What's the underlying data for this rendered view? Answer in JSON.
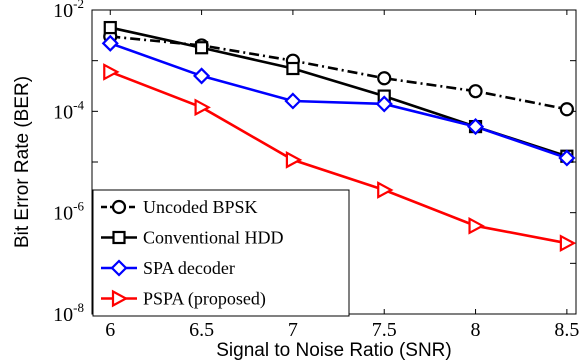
{
  "chart_data": {
    "type": "line",
    "title": "",
    "xlabel": "Signal to Noise Ratio (SNR)",
    "ylabel": "Bit Error Rate (BER)",
    "x": [
      6,
      6.5,
      7,
      7.5,
      8,
      8.5
    ],
    "xlim": [
      5.9,
      8.55
    ],
    "ylim": [
      1e-08,
      0.01
    ],
    "yscale": "log",
    "x_tick_labels": [
      "6",
      "6.5",
      "7",
      "7.5",
      "8",
      "8.5"
    ],
    "y_ticks": [
      {
        "value": 1e-08,
        "base": "10",
        "exp": "-8"
      },
      {
        "value": 1e-06,
        "base": "10",
        "exp": "-6"
      },
      {
        "value": 0.0001,
        "base": "10",
        "exp": "-4"
      },
      {
        "value": 0.01,
        "base": "10",
        "exp": "-2"
      }
    ],
    "grid": false,
    "legend_position": "bottom-left",
    "series": [
      {
        "name": "Uncoded BPSK",
        "color": "#000000",
        "dash": "dash-dot",
        "marker": "circle",
        "values": [
          0.003,
          0.002,
          0.001,
          0.00045,
          0.00025,
          0.00011
        ]
      },
      {
        "name": "Conventional HDD",
        "color": "#000000",
        "dash": "solid",
        "marker": "square",
        "values": [
          0.0045,
          0.0018,
          0.0007,
          0.0002,
          5e-05,
          1.3e-05
        ]
      },
      {
        "name": "SPA decoder",
        "color": "#0000ff",
        "dash": "solid",
        "marker": "diamond",
        "values": [
          0.0022,
          0.0005,
          0.00016,
          0.00014,
          5e-05,
          1.2e-05
        ]
      },
      {
        "name": "PSPA (proposed)",
        "color": "#ff0000",
        "dash": "solid",
        "marker": "triangle-right",
        "values": [
          0.0006,
          0.00012,
          1.1e-05,
          2.8e-06,
          5.5e-07,
          2.5e-07
        ]
      }
    ]
  }
}
